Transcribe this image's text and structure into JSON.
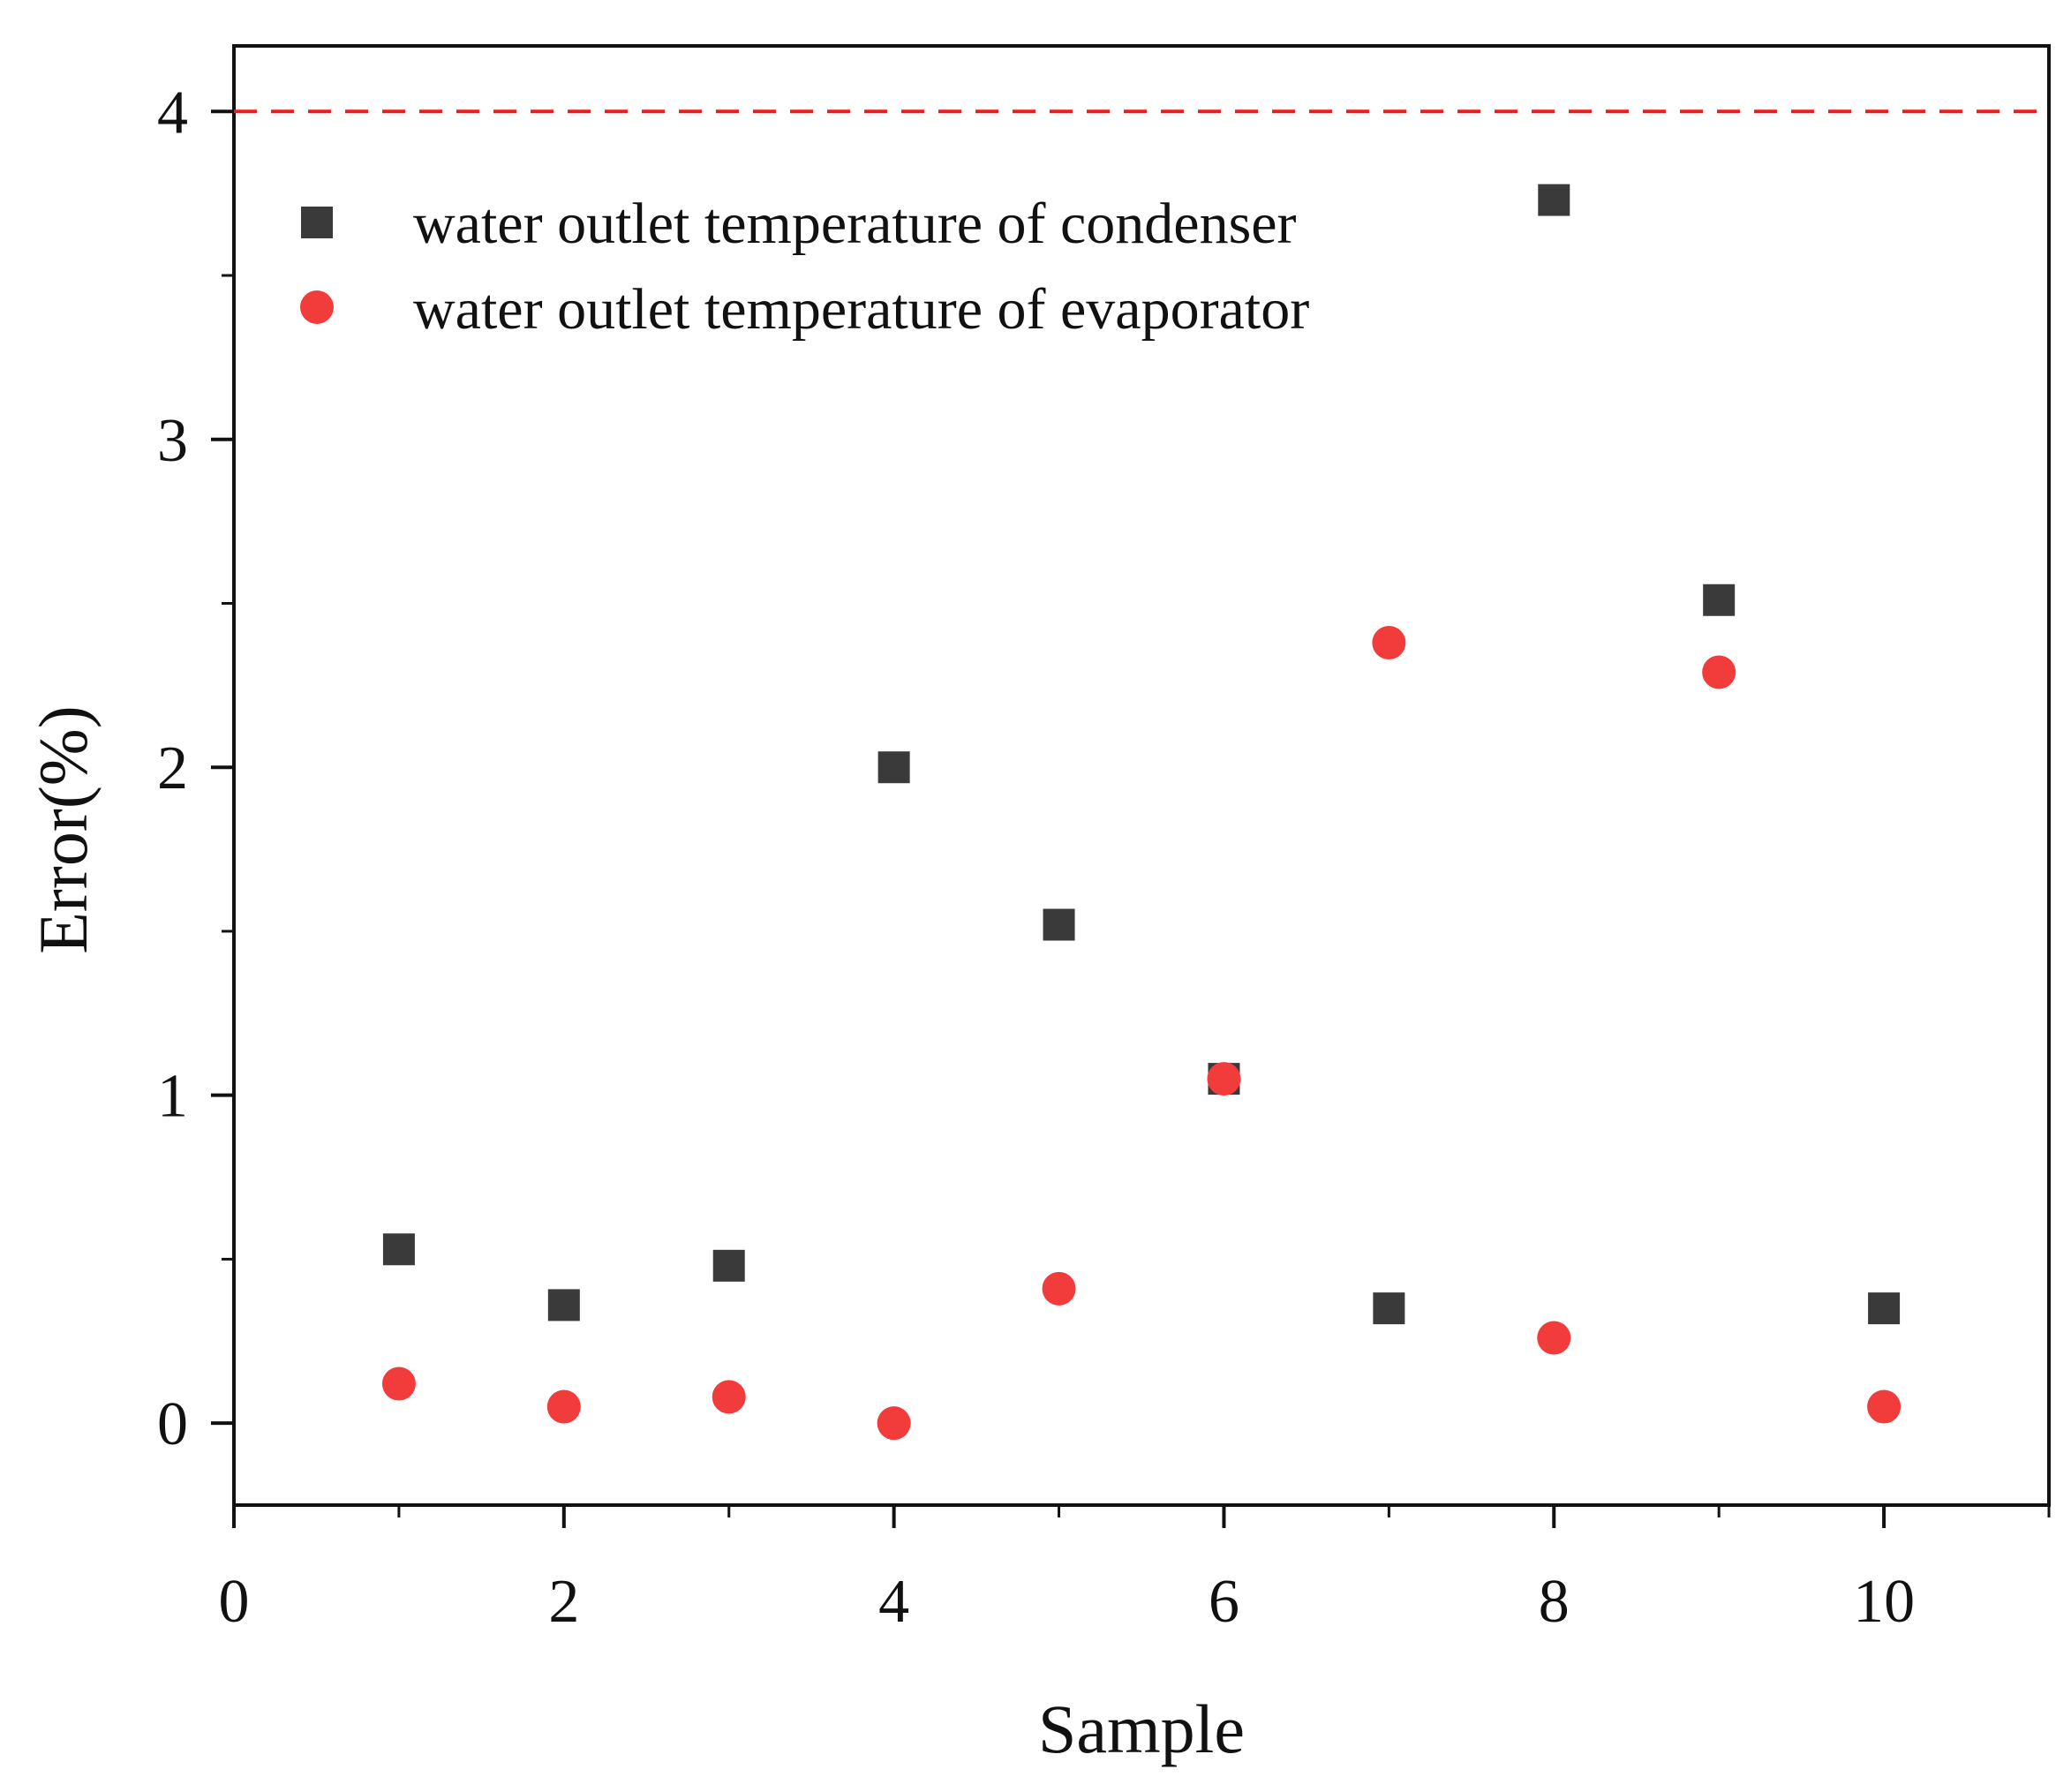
{
  "chart_data": {
    "type": "scatter",
    "title": "",
    "xlabel": "Sample",
    "ylabel": "Error(%)",
    "xlim": [
      0,
      11
    ],
    "ylim": [
      -0.25,
      4.2
    ],
    "xticks": [
      0,
      2,
      4,
      6,
      8,
      10
    ],
    "xticks_minor": [
      1,
      3,
      5,
      7,
      9,
      11
    ],
    "yticks": [
      0,
      1,
      2,
      3,
      4
    ],
    "yticks_minor": [
      0.5,
      1.5,
      2.5,
      3.5
    ],
    "reference_line": {
      "y": 4,
      "style": "dashed",
      "color": "#ee1c1c"
    },
    "legend_position": "top-left",
    "series": [
      {
        "name": "water outlet temperature of condenser",
        "marker": "square",
        "color": "#3a3a3a",
        "x": [
          1,
          2,
          3,
          4,
          5,
          6,
          7,
          8,
          9,
          10
        ],
        "y": [
          0.53,
          0.36,
          0.48,
          2.0,
          1.52,
          1.05,
          0.35,
          3.73,
          2.51,
          0.35
        ]
      },
      {
        "name": "water outlet temperature of evaporator",
        "marker": "circle",
        "color": "#f23b3b",
        "x": [
          1,
          2,
          3,
          4,
          5,
          6,
          7,
          8,
          9,
          10
        ],
        "y": [
          0.12,
          0.05,
          0.08,
          0.0,
          0.41,
          1.05,
          2.38,
          0.26,
          2.29,
          0.05
        ]
      }
    ]
  }
}
